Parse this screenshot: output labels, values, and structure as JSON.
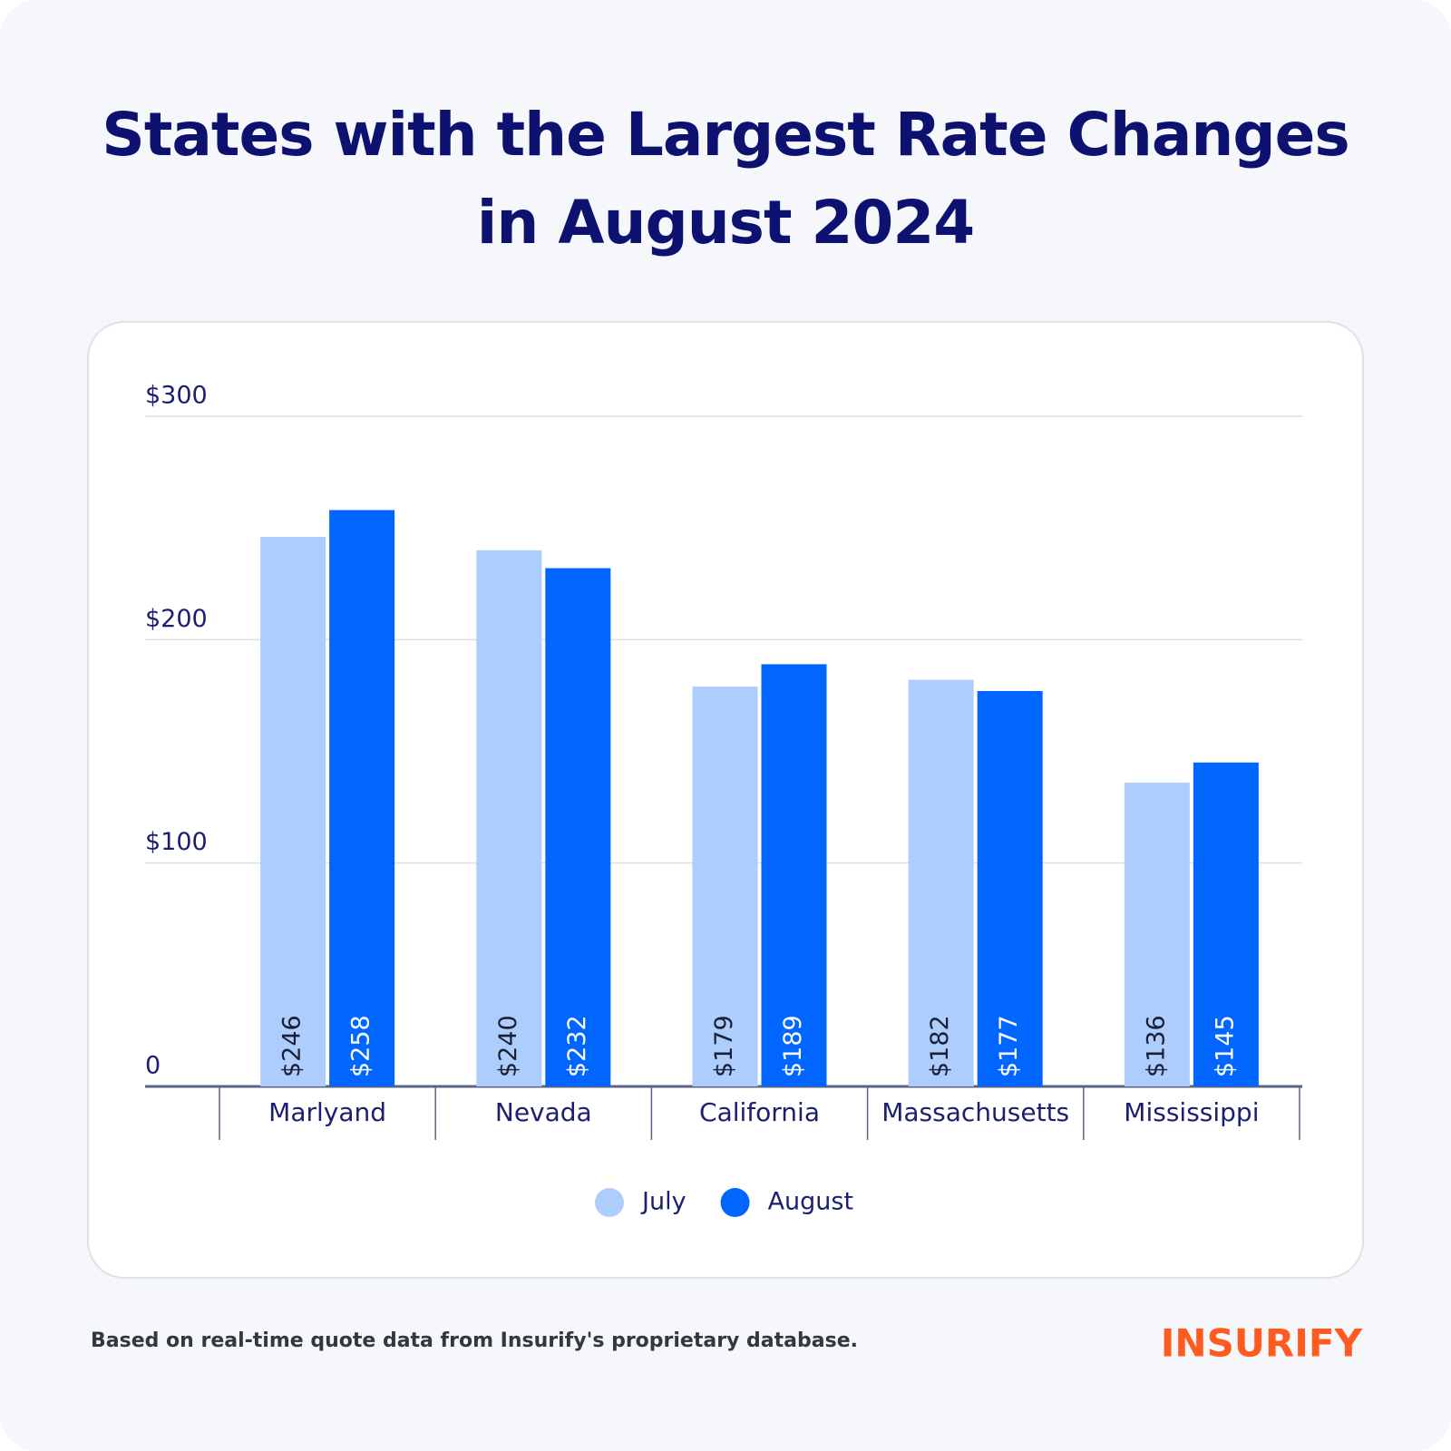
{
  "chart_data": {
    "type": "bar",
    "title": "States with the Largest Rate Changes in August 2024",
    "categories": [
      "Marlyand",
      "Nevada",
      "California",
      "Massachusetts",
      "Mississippi"
    ],
    "series": [
      {
        "name": "July",
        "color": "#adcdfd",
        "values": [
          246,
          240,
          179,
          182,
          136
        ],
        "value_labels": [
          "$246",
          "$240",
          "$179",
          "$182",
          "$136"
        ]
      },
      {
        "name": "August",
        "color": "#0066ff",
        "values": [
          258,
          232,
          189,
          177,
          145
        ],
        "value_labels": [
          "$258",
          "$232",
          "$189",
          "$177",
          "$145"
        ]
      }
    ],
    "ylim": [
      0,
      300
    ],
    "yticks": [
      0,
      {
        "value": 100,
        "label": "$100"
      },
      {
        "value": 200,
        "label": "$200"
      },
      {
        "value": 300,
        "label": "$300"
      }
    ],
    "grid": true,
    "legend": "bottom"
  },
  "footer": {
    "note": "Based on real-time quote data from Insurify's proprietary database.",
    "brand": "INSURIFY"
  }
}
